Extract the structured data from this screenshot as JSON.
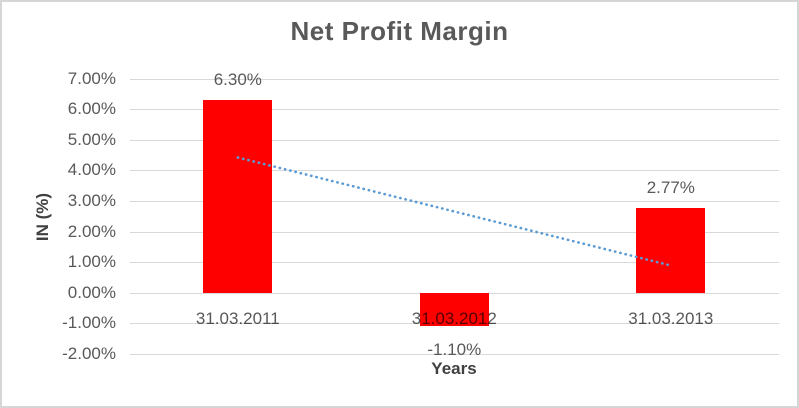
{
  "chart_data": {
    "type": "bar",
    "title": "Net Profit Margin",
    "xlabel": "Years",
    "ylabel": "IN (%)",
    "categories": [
      "31.03.2011",
      "31.03.2012",
      "31.03.2013"
    ],
    "values": [
      6.3,
      -1.1,
      2.77
    ],
    "data_labels": [
      "6.30%",
      "-1.10%",
      "2.77%"
    ],
    "ylim": [
      -2,
      7
    ],
    "ytick_step": 1,
    "ytick_labels": [
      "7.00%",
      "6.00%",
      "5.00%",
      "4.00%",
      "3.00%",
      "2.00%",
      "1.00%",
      "0.00%",
      "-1.00%",
      "-2.00%"
    ],
    "grid": true,
    "legend": "none",
    "trendline": {
      "type": "linear",
      "style": "dotted",
      "start_value": 4.42,
      "end_value": 0.89
    },
    "colors": {
      "bar": "#FF0000",
      "trendline": "#5B9BD5",
      "gridline": "#D9D9D9",
      "label_text": "#595959",
      "axis_title_text": "#404040",
      "title_text": "#595959",
      "border": "#D6D6D6"
    }
  }
}
